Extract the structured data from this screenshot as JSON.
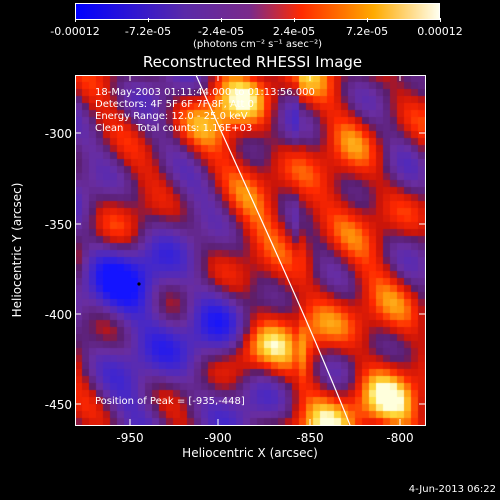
{
  "colorbar": {
    "tick_labels": [
      "-0.00012",
      "-7.2e-05",
      "-2.4e-05",
      "2.4e-05",
      "7.2e-05",
      "0.00012"
    ],
    "unit_label": "(photons cm⁻² s⁻¹ asec⁻²)",
    "range": [
      -0.00012,
      0.00012
    ],
    "colors": [
      "#0000ff",
      "#5a2aa8",
      "#7a2a8a",
      "#ff2a00",
      "#ffaa00",
      "#ffffee"
    ]
  },
  "plot": {
    "title": "Reconstructed RHESSI Image",
    "info_lines": [
      "18-May-2003 01:11:44.000 to 01:13:56.000",
      "Detectors: 4F 5F 6F 7F 8F, Att 0",
      "Energy Range: 12.0 - 25.0 keV",
      "Clean    Total counts: 1.16E+03"
    ],
    "peak_label": "Position of Peak = [-935,-448]",
    "xlabel": "Heliocentric X (arcsec)",
    "ylabel": "Heliocentric Y (arcsec)",
    "x_ticks": [
      "-950",
      "-900",
      "-850",
      "-800"
    ],
    "y_ticks": [
      "-300",
      "-350",
      "-400",
      "-450"
    ]
  },
  "footer_timestamp": "4-Jun-2013 06:22",
  "chart_data": {
    "type": "heatmap",
    "title": "Reconstructed RHESSI Image",
    "xlabel": "Heliocentric X (arcsec)",
    "ylabel": "Heliocentric Y (arcsec)",
    "xlim": [
      -975,
      -785
    ],
    "ylim": [
      -462,
      -268
    ],
    "x_ticks": [
      -950,
      -900,
      -850,
      -800
    ],
    "y_ticks": [
      -300,
      -350,
      -400,
      -450
    ],
    "colorbar_range": [
      -0.00012,
      0.00012
    ],
    "peak_position": [
      -935,
      -448
    ]
  }
}
